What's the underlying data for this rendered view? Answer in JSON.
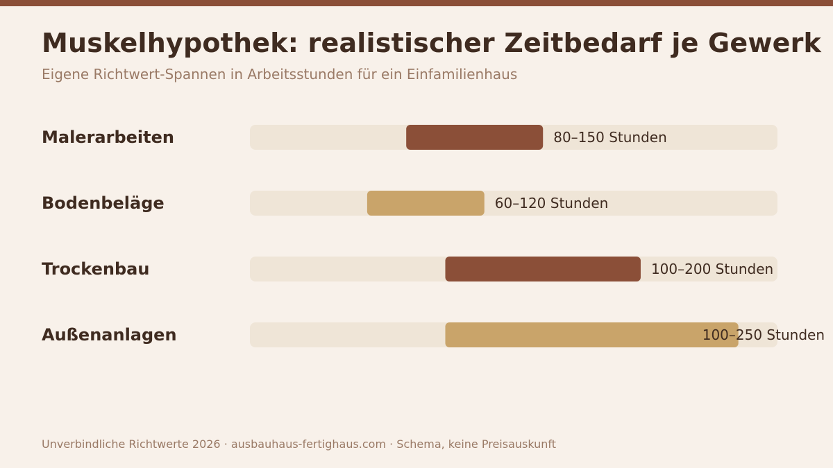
{
  "header": {
    "title": "Muskelhypothek: realistischer Zeitbedarf je Gewerk",
    "subtitle": "Eigene Richtwert-Spannen in Arbeitsstunden für ein Einfamilienhaus"
  },
  "footer": {
    "text": "Unverbindliche Richtwerte 2026 · ausbauhaus-fertighaus.com · Schema, keine Preisauskunft"
  },
  "colors": {
    "background": "#f8f1ea",
    "accent_dark": "#8b4f38",
    "accent_light": "#c9a46a",
    "track": "#efe5d7",
    "text": "#3f2b20",
    "muted": "#9a7a66"
  },
  "chart_data": {
    "type": "bar",
    "orientation": "horizontal-range",
    "title": "Muskelhypothek: realistischer Zeitbedarf je Gewerk",
    "subtitle": "Eigene Richtwert-Spannen in Arbeitsstunden für ein Einfamilienhaus",
    "xlabel": "",
    "ylabel": "",
    "xlim": [
      0,
      270
    ],
    "grid": false,
    "categories": [
      "Malerarbeiten",
      "Bodenbeläge",
      "Trockenbau",
      "Außenanlagen"
    ],
    "ranges": [
      {
        "category": "Malerarbeiten",
        "min": 80,
        "max": 150,
        "label": "80–150 Stunden",
        "color": "#8b4f38"
      },
      {
        "category": "Bodenbeläge",
        "min": 60,
        "max": 120,
        "label": "60–120 Stunden",
        "color": "#c9a46a"
      },
      {
        "category": "Trockenbau",
        "min": 100,
        "max": 200,
        "label": "100–200 Stunden",
        "color": "#8b4f38"
      },
      {
        "category": "Außenanlagen",
        "min": 100,
        "max": 250,
        "label": "100–250 Stunden",
        "color": "#c9a46a"
      }
    ]
  }
}
